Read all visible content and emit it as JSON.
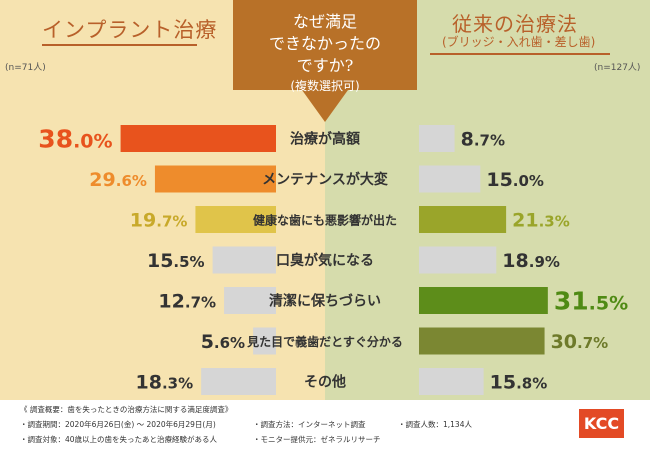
{
  "header": {
    "left_title": "インプラント治療",
    "left_n": "(n=71人)",
    "right_title": "従来の治療法",
    "right_subtitle": "(ブリッジ・入れ歯・差し歯)",
    "right_n": "(n=127人)",
    "question_lines": [
      "なぜ満足",
      "できなかったの",
      "ですか?",
      "(複数選択可)"
    ]
  },
  "chart_data": {
    "type": "bar",
    "orientation": "horizontal-mirrored",
    "categories": [
      "治療が高額",
      "メンテナンスが大変",
      "健康な歯にも悪影響が出た",
      "口臭が気になる",
      "清潔に保ちづらい",
      "見た目で義歯だとすぐ分かる",
      "その他"
    ],
    "series": [
      {
        "name": "インプラント治療",
        "values": [
          38.0,
          29.6,
          19.7,
          15.5,
          12.7,
          5.6,
          18.3
        ],
        "colors": [
          "#e8531d",
          "#ee8c2c",
          "#e0c44a",
          "#d6d6d6",
          "#d6d6d6",
          "#d6d6d6",
          "#d6d6d6"
        ]
      },
      {
        "name": "従来の治療法",
        "values": [
          8.7,
          15.0,
          21.3,
          18.9,
          31.5,
          30.7,
          15.8
        ],
        "colors": [
          "#d6d6d6",
          "#d6d6d6",
          "#9aa52a",
          "#d6d6d6",
          "#5d8d1a",
          "#7b8732",
          "#d6d6d6"
        ]
      }
    ],
    "highlight_text_colors": {
      "left": [
        "#e8531d",
        "#ee8c2c",
        "#c8a92a",
        "#333333",
        "#333333",
        "#333333",
        "#333333"
      ],
      "right": [
        "#333333",
        "#333333",
        "#9aa52a",
        "#333333",
        "#4f8a14",
        "#6e7a2a",
        "#333333"
      ]
    },
    "value_unit": "%"
  },
  "footer": {
    "lines": [
      "《 調査概要：歯を失ったときの治療方法に関する満足度調査》",
      "・調査期間：2020年6月26日(金) ～ 2020年6月29日(月)",
      "・調査方法：インターネット調査",
      "・調査人数：1,134人",
      "・調査対象：40歳以上の歯を失ったあと治療経験がある人",
      "・モニター提供元：ゼネラルリサーチ"
    ],
    "logo": "KCC"
  }
}
